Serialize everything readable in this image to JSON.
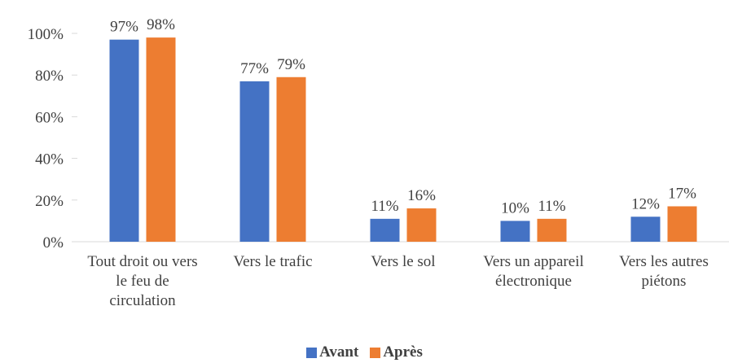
{
  "chart_data": {
    "type": "bar",
    "categories": [
      "Tout droit ou vers le feu de circulation",
      "Vers le trafic",
      "Vers le sol",
      "Vers un appareil électronique",
      "Vers les autres piétons"
    ],
    "series": [
      {
        "name": "Avant",
        "color": "#4472c4",
        "values": [
          97,
          77,
          11,
          10,
          12
        ],
        "value_labels": [
          "97%",
          "77%",
          "11%",
          "10%",
          "12%"
        ]
      },
      {
        "name": "Après",
        "color": "#ed7d31",
        "values": [
          98,
          79,
          16,
          11,
          17
        ],
        "value_labels": [
          "98%",
          "79%",
          "16%",
          "11%",
          "17%"
        ]
      }
    ],
    "ylim": [
      0,
      100
    ],
    "yticks": [
      {
        "value": 0,
        "label": "0%"
      },
      {
        "value": 20,
        "label": "20%"
      },
      {
        "value": 40,
        "label": "40%"
      },
      {
        "value": 60,
        "label": "60%"
      },
      {
        "value": 80,
        "label": "80%"
      },
      {
        "value": 100,
        "label": "100%"
      }
    ],
    "legend": "bottom"
  }
}
